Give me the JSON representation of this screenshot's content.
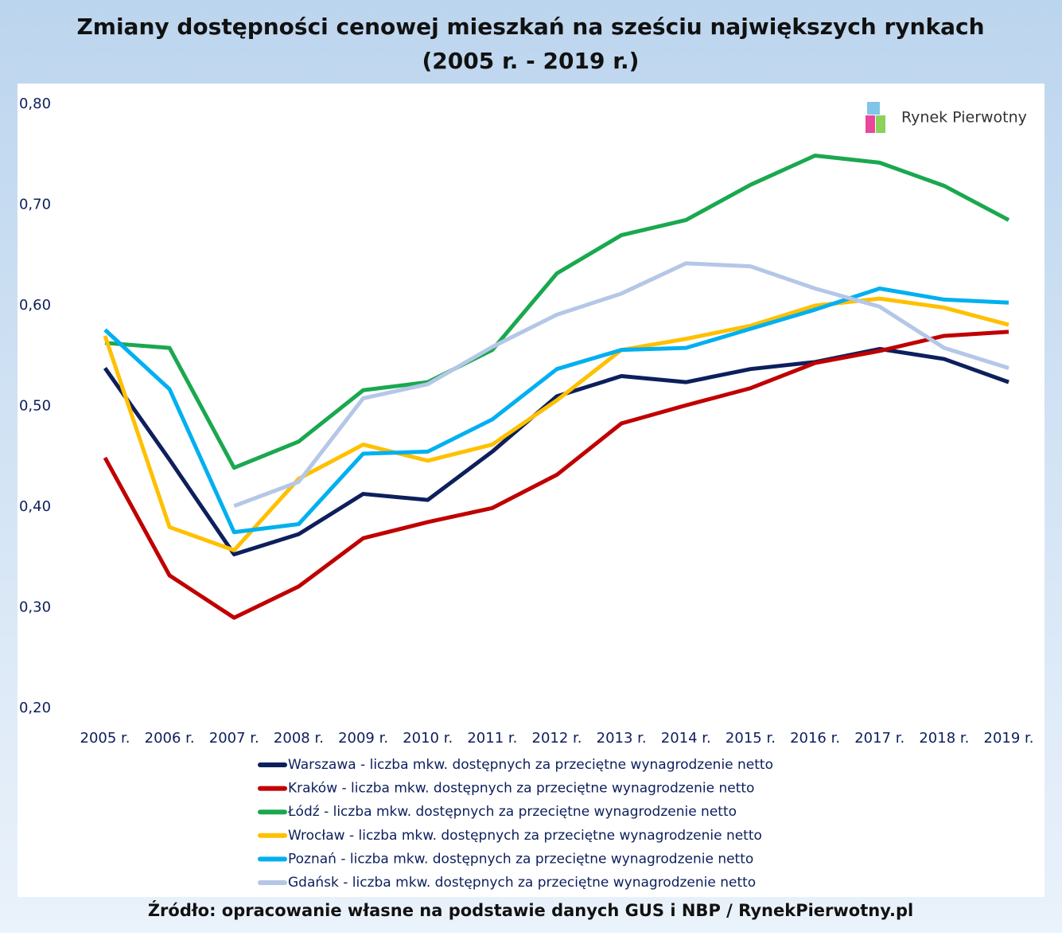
{
  "chart_data": {
    "type": "line",
    "title": "Zmiany dostępności cenowej mieszkań na sześciu największych rynkach",
    "subtitle": "(2005 r. - 2019 r.)",
    "watermark": "Rynek Pierwotny",
    "source": "Źródło: opracowanie własne na podstawie danych GUS i NBP / RynekPierwotny.pl",
    "categories": [
      "2005 r.",
      "2006 r.",
      "2007 r.",
      "2008 r.",
      "2009 r.",
      "2010 r.",
      "2011 r.",
      "2012 r.",
      "2013 r.",
      "2014 r.",
      "2015 r.",
      "2016 r.",
      "2017 r.",
      "2018 r.",
      "2019 r."
    ],
    "ylim": [
      0.2,
      0.8
    ],
    "yticks": [
      {
        "value": 0.2,
        "label": "0,20"
      },
      {
        "value": 0.3,
        "label": "0,30"
      },
      {
        "value": 0.4,
        "label": "0,40"
      },
      {
        "value": 0.5,
        "label": "0,50"
      },
      {
        "value": 0.6,
        "label": "0,60"
      },
      {
        "value": 0.7,
        "label": "0,70"
      },
      {
        "value": 0.8,
        "label": "0,80"
      }
    ],
    "grid": false,
    "series": [
      {
        "name": "Warszawa - liczba mkw. dostępnych za przeciętne wynagrodzenie netto",
        "color": "#0d1f5c",
        "values": [
          0.538,
          0.447,
          0.353,
          0.373,
          0.413,
          0.407,
          0.455,
          0.51,
          0.53,
          0.524,
          0.537,
          0.544,
          0.557,
          0.547,
          0.524
        ]
      },
      {
        "name": "Kraków - liczba mkw. dostępnych za przeciętne wynagrodzenie netto",
        "color": "#c00000",
        "values": [
          0.449,
          0.332,
          0.29,
          0.321,
          0.369,
          0.385,
          0.399,
          0.432,
          0.483,
          0.501,
          0.518,
          0.543,
          0.555,
          0.57,
          0.574
        ]
      },
      {
        "name": "Łódź - liczba mkw. dostępnych za przeciętne wynagrodzenie netto",
        "color": "#1aa84f",
        "values": [
          0.563,
          0.558,
          0.439,
          0.465,
          0.516,
          0.524,
          0.556,
          0.632,
          0.67,
          0.685,
          0.72,
          0.749,
          0.742,
          0.719,
          0.685
        ]
      },
      {
        "name": "Wrocław - liczba mkw. dostępnych za przeciętne wynagrodzenie netto",
        "color": "#ffc000",
        "values": [
          0.57,
          0.38,
          0.357,
          0.428,
          0.462,
          0.446,
          0.462,
          0.506,
          0.556,
          0.567,
          0.58,
          0.6,
          0.607,
          0.598,
          0.581
        ]
      },
      {
        "name": "Poznań - liczba mkw. dostępnych za przeciętne wynagrodzenie netto",
        "color": "#00b0f0",
        "values": [
          0.576,
          0.517,
          0.375,
          0.383,
          0.453,
          0.455,
          0.487,
          0.537,
          0.556,
          0.558,
          0.577,
          0.596,
          0.617,
          0.606,
          0.603
        ]
      },
      {
        "name": "Gdańsk - liczba mkw. dostępnych za przeciętne wynagrodzenie netto",
        "color": "#b4c7e7",
        "values": [
          null,
          null,
          0.401,
          0.425,
          0.508,
          0.522,
          0.559,
          0.591,
          0.612,
          0.642,
          0.639,
          0.617,
          0.599,
          0.558,
          0.538
        ]
      }
    ]
  }
}
